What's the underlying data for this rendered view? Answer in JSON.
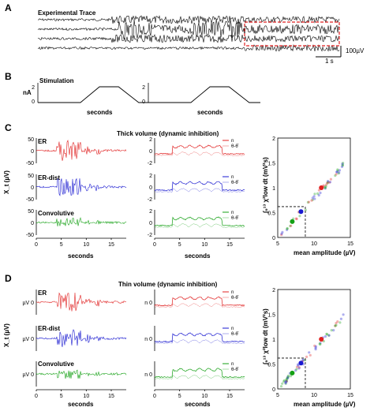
{
  "panel_A": {
    "letter": "A",
    "title": "Experimental Trace",
    "scale_y": "100µV",
    "scale_x": "1 s"
  },
  "panel_B": {
    "letter": "B",
    "title": "Stimulation",
    "ylabel": "nA",
    "xlabel": "seconds",
    "yticks": [
      "2",
      "0"
    ]
  },
  "panel_C": {
    "letter": "C",
    "title": "Thick volume (dynamic inhibition)",
    "ylabel": "X_t (µV)",
    "rows": [
      {
        "label": "ER",
        "color": "#e02020"
      },
      {
        "label": "ER-dist",
        "color": "#1a1ad0"
      },
      {
        "label": "Convolutive",
        "color": "#14a014"
      }
    ],
    "left_yticks": [
      "50",
      "0",
      "-50"
    ],
    "mid_yticks": [
      "2",
      "0",
      "-2"
    ],
    "xticks": [
      "0",
      "5",
      "10",
      "15"
    ],
    "xlabel": "seconds",
    "legend_n": "n",
    "legend_theta": "θ-θ̄",
    "scatter_ylabel": "∫₉¹³ χ²low dt  (mV²s)",
    "scatter_xlabel": "mean amplitude (µV)",
    "scatter_yticks": [
      "2",
      "1.5",
      "1",
      "0.5",
      "0"
    ],
    "scatter_xticks": [
      "5",
      "10",
      "15"
    ]
  },
  "panel_D": {
    "letter": "D",
    "title": "Thin volume (dynamic inhibition)",
    "ylabel": "X_t (µV)",
    "rows": [
      {
        "label": "ER",
        "color": "#e02020"
      },
      {
        "label": "ER-dist",
        "color": "#1a1ad0"
      },
      {
        "label": "Convolutive",
        "color": "#14a014"
      }
    ],
    "left_ytick_pair": "µV 0",
    "mid_ytick_pair": "n 0",
    "xticks": [
      "0",
      "5",
      "10",
      "15"
    ],
    "xlabel": "seconds",
    "legend_n": "n",
    "legend_theta": "θ-θ̄",
    "scatter_ylabel": "∫₉¹³ χ²low dt  (mV²s)",
    "scatter_xlabel": "mean amplitude (µV)",
    "scatter_yticks": [
      "2",
      "1.5",
      "1",
      "0.5",
      "0"
    ],
    "scatter_xticks": [
      "5",
      "10",
      "15"
    ]
  }
}
